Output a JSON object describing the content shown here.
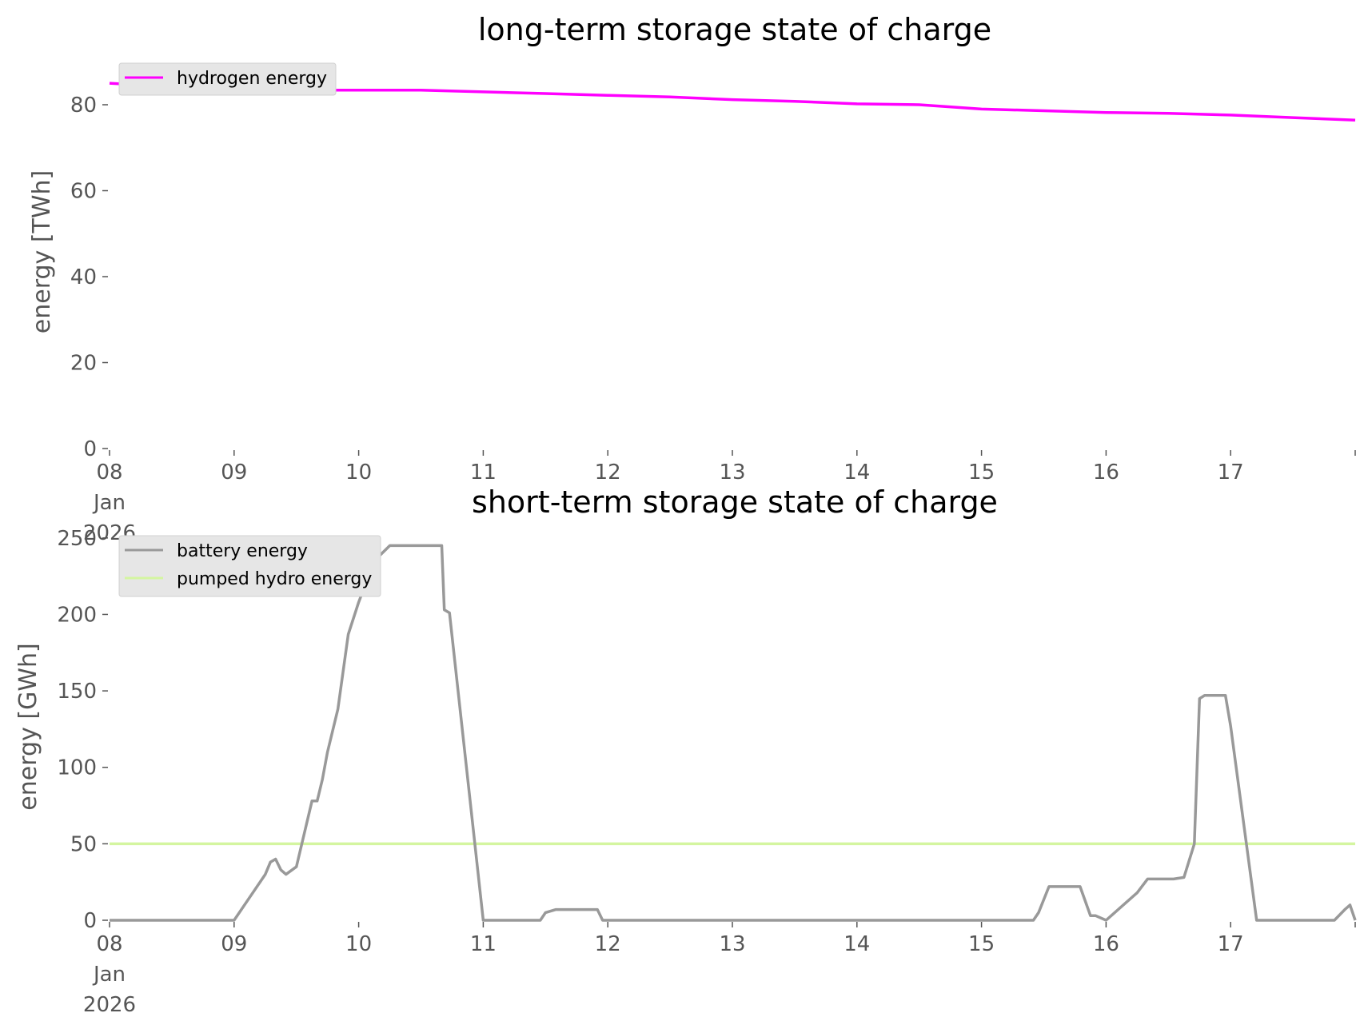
{
  "chart_data": [
    {
      "type": "line",
      "title": "long-term storage state of charge",
      "xlabel": "",
      "ylabel": "energy [TWh]",
      "ylim": [
        0,
        88
      ],
      "yticks": [
        "0",
        "20",
        "40",
        "60",
        "80"
      ],
      "xlim": [
        "2026-01-08",
        "2026-01-18"
      ],
      "xtick_labels": [
        "08\nJan\n2026",
        "09",
        "10",
        "11",
        "12",
        "13",
        "14",
        "15",
        "16",
        "17"
      ],
      "grid": false,
      "legend_placement": "top-left",
      "series": [
        {
          "name": "hydrogen energy",
          "color": "#ff00ff",
          "x": [
            "2026-01-08",
            "2026-01-08 12:00",
            "2026-01-09",
            "2026-01-09 12:00",
            "2026-01-10",
            "2026-01-10 12:00",
            "2026-01-11",
            "2026-01-11 12:00",
            "2026-01-12",
            "2026-01-12 12:00",
            "2026-01-13",
            "2026-01-13 12:00",
            "2026-01-14",
            "2026-01-14 12:00",
            "2026-01-15",
            "2026-01-15 12:00",
            "2026-01-16",
            "2026-01-16 12:00",
            "2026-01-17",
            "2026-01-17 12:00",
            "2026-01-18"
          ],
          "y": [
            85.0,
            84.2,
            83.5,
            83.4,
            83.4,
            83.4,
            83.0,
            82.6,
            82.2,
            81.8,
            81.2,
            80.8,
            80.2,
            80.0,
            79.0,
            78.6,
            78.2,
            78.0,
            77.6,
            77.0,
            76.4
          ]
        }
      ]
    },
    {
      "type": "line",
      "title": "short-term storage state of charge",
      "xlabel": "",
      "ylabel": "energy [GWh]",
      "ylim": [
        0,
        252
      ],
      "yticks": [
        "0",
        "50",
        "100",
        "150",
        "200",
        "250"
      ],
      "xlim": [
        "2026-01-08",
        "2026-01-18"
      ],
      "xtick_labels": [
        "08\nJan\n2026",
        "09",
        "10",
        "11",
        "12",
        "13",
        "14",
        "15",
        "16",
        "17"
      ],
      "grid": false,
      "legend_placement": "top-left",
      "series": [
        {
          "name": "battery energy",
          "color": "#999999",
          "x": [
            "2026-01-08",
            "2026-01-09",
            "2026-01-09 03:00",
            "2026-01-09 06:00",
            "2026-01-09 07:00",
            "2026-01-09 08:00",
            "2026-01-09 09:00",
            "2026-01-09 10:00",
            "2026-01-09 12:00",
            "2026-01-09 15:00",
            "2026-01-09 16:00",
            "2026-01-09 17:00",
            "2026-01-09 18:00",
            "2026-01-09 20:00",
            "2026-01-09 22:00",
            "2026-01-10",
            "2026-01-10 03:00",
            "2026-01-10 06:00",
            "2026-01-10 07:00",
            "2026-01-10 09:00",
            "2026-01-10 16:00",
            "2026-01-10 16:30",
            "2026-01-10 17:30",
            "2026-01-11",
            "2026-01-11 11:00",
            "2026-01-11 12:00",
            "2026-01-11 14:00",
            "2026-01-11 22:00",
            "2026-01-11 23:00",
            "2026-01-15 10:00",
            "2026-01-15 11:00",
            "2026-01-15 13:00",
            "2026-01-15 19:00",
            "2026-01-15 21:00",
            "2026-01-15 22:00",
            "2026-01-16",
            "2026-01-16 06:00",
            "2026-01-16 08:00",
            "2026-01-16 10:00",
            "2026-01-16 13:00",
            "2026-01-16 15:00",
            "2026-01-16 17:00",
            "2026-01-16 18:00",
            "2026-01-16 19:00",
            "2026-01-16 20:00",
            "2026-01-16 23:00",
            "2026-01-17",
            "2026-01-17 05:00",
            "2026-01-17 20:00",
            "2026-01-17 22:00",
            "2026-01-17 23:00",
            "2026-01-18"
          ],
          "y": [
            0,
            0,
            15,
            30,
            38,
            40,
            33,
            30,
            35,
            78,
            78,
            92,
            110,
            138,
            187,
            208,
            235,
            245,
            245,
            245,
            245,
            203,
            201,
            0,
            0,
            5,
            7,
            7,
            0,
            0,
            5,
            22,
            22,
            3,
            3,
            0,
            18,
            27,
            27,
            27,
            28,
            50,
            145,
            147,
            147,
            147,
            127,
            0,
            0,
            7,
            10,
            0
          ]
        },
        {
          "name": "pumped hydro energy",
          "color": "#d4f5a0",
          "x": [
            "2026-01-08",
            "2026-01-18"
          ],
          "y": [
            50,
            50
          ]
        }
      ]
    }
  ]
}
